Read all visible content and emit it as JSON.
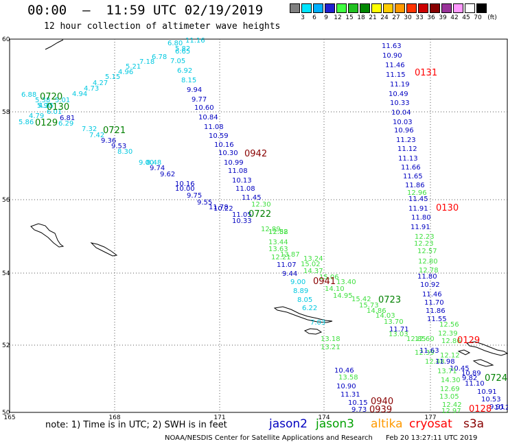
{
  "header": {
    "title": "00:00  –  11:59 UTC 02/19/2019",
    "subtitle": "12 hour collection of altimeter wave heights"
  },
  "legend": {
    "unit": "(ft)",
    "items": [
      {
        "color": "#808080",
        "label": "3"
      },
      {
        "color": "#00e5ff",
        "label": "6"
      },
      {
        "color": "#00b0ff",
        "label": "9"
      },
      {
        "color": "#2020d0",
        "label": "12"
      },
      {
        "color": "#40ff40",
        "label": "15"
      },
      {
        "color": "#20c020",
        "label": "18"
      },
      {
        "color": "#008800",
        "label": "21"
      },
      {
        "color": "#ffff00",
        "label": "24"
      },
      {
        "color": "#ffcc00",
        "label": "27"
      },
      {
        "color": "#ff9900",
        "label": "30"
      },
      {
        "color": "#ff3300",
        "label": "33"
      },
      {
        "color": "#cc0000",
        "label": "36"
      },
      {
        "color": "#880000",
        "label": "39"
      },
      {
        "color": "#993399",
        "label": "42"
      },
      {
        "color": "#ff99ff",
        "label": "45"
      },
      {
        "color": "#ffffff",
        "label": "70"
      },
      {
        "color": "#000000",
        "label": ""
      }
    ]
  },
  "axes": {
    "lat_ticks": [
      "60",
      "58",
      "56",
      "54",
      "52",
      "50"
    ],
    "lon_ticks": [
      "165",
      "168",
      "171",
      "174",
      "177"
    ]
  },
  "tracks": {
    "jason3_west": {
      "color": "#00c8e0",
      "values": [
        "11.16",
        "6.80",
        "5.82",
        "6.65",
        "6.78",
        "7.18",
        "5.21",
        "4.96",
        "5.15",
        "4.27",
        "4.73",
        "4.94",
        "6.88",
        "5.38",
        "5.01",
        "4.25",
        "6.01",
        "5.90",
        "4.79",
        "5.86"
      ]
    },
    "jason2_curve": {
      "color": "#00c8e0",
      "values": [
        "7.05",
        "6.92",
        "8.15"
      ]
    },
    "jason2_mid": {
      "color": "#0000c0",
      "values": [
        "9.94",
        "9.77",
        "10.60",
        "10.84",
        "11.08",
        "10.59",
        "10.16",
        "10.30",
        "10.99",
        "11.08",
        "10.13",
        "11.08",
        "11.45",
        "11.05",
        "10.33",
        "11.07",
        "9.44"
      ]
    },
    "jason2_lower": {
      "color": "#00c8e0",
      "values": [
        "9.00",
        "8.89",
        "8.05",
        "6.22",
        "7.03"
      ]
    },
    "jason2_bottom": {
      "color": "#0000c0",
      "values": [
        "10.46",
        "10.90",
        "11.31",
        "10.15",
        "9.73"
      ]
    },
    "cyan_diag": {
      "color": "#00c8e0",
      "values": [
        "6.29",
        "7.32",
        "7.42",
        "8.30",
        "9.00",
        "8.48"
      ]
    },
    "blue_diag": {
      "color": "#0000c0",
      "values": [
        "6.81",
        "9.36",
        "9.53",
        "9.74",
        "9.62",
        "10.16",
        "10.00",
        "9.75",
        "9.55",
        "10.22",
        "11.78"
      ]
    },
    "altika_green": {
      "color": "#40e040",
      "values": [
        "12.30",
        "12.58",
        "12.82",
        "12.89",
        "13.44",
        "13.63",
        "13.87",
        "12.21",
        "13.24",
        "15.02",
        "14.37",
        "15.06",
        "13.40",
        "14.10",
        "14.95",
        "15.42",
        "15.73",
        "14.86",
        "14.03",
        "13.70",
        "13.03",
        "12.85",
        "12.60",
        "12.39",
        "12.48",
        "13.58",
        "13.18",
        "13.21"
      ]
    },
    "jason2_east": {
      "color": "#0000c0",
      "values": [
        "11.63",
        "10.90",
        "11.46",
        "11.15",
        "11.19",
        "10.49",
        "10.33",
        "10.04",
        "10.03",
        "10.96",
        "11.23",
        "11.12",
        "11.13",
        "11.66",
        "11.65",
        "11.86",
        "11.45",
        "11.91",
        "11.80",
        "11.91",
        "11.80",
        "10.92",
        "11.46",
        "11.70",
        "11.86",
        "11.55",
        "11.71",
        "11.63",
        "11.98",
        "10.45",
        "10.89",
        "9.82",
        "11.10",
        "10.91",
        "10.53",
        "9.91",
        "10.2"
      ]
    },
    "green_east": {
      "color": "#40e040",
      "values": [
        "12.96",
        "12.23",
        "12.23",
        "12.57",
        "12.80",
        "12.78",
        "12.56",
        "12.39",
        "12.86",
        "12.12",
        "13.71",
        "14.30",
        "12.69",
        "13.05",
        "12.42",
        "12.97"
      ]
    }
  },
  "times": [
    {
      "text": "0720",
      "color": "#008000"
    },
    {
      "text": "0130",
      "color": "#008000"
    },
    {
      "text": "0129",
      "color": "#008000"
    },
    {
      "text": "0721",
      "color": "#008000"
    },
    {
      "text": "0942",
      "color": "#880000"
    },
    {
      "text": "0722",
      "color": "#008000"
    },
    {
      "text": "0941",
      "color": "#880000"
    },
    {
      "text": "0723",
      "color": "#008000"
    },
    {
      "text": "0940",
      "color": "#880000"
    },
    {
      "text": "0939",
      "color": "#880000"
    },
    {
      "text": "0131",
      "color": "#ff0000"
    },
    {
      "text": "0130",
      "color": "#ff0000"
    },
    {
      "text": "0129",
      "color": "#ff0000"
    },
    {
      "text": "0724",
      "color": "#008000"
    },
    {
      "text": "0128",
      "color": "#ff0000"
    }
  ],
  "footer": {
    "note": "note: 1) Time is in UTC; 2) SWH is in feet",
    "sats": [
      {
        "name": "jason2",
        "color": "#0000c0"
      },
      {
        "name": "jason3",
        "color": "#00a000"
      },
      {
        "name": "altika",
        "color": "#ff9900"
      },
      {
        "name": "cryosat",
        "color": "#ff0000"
      },
      {
        "name": "s3a",
        "color": "#880000"
      }
    ],
    "credit": "NOAA/NESDIS Center for Satellite Applications and Research",
    "timestamp": "Feb 20 13:27:11 UTC 2019"
  }
}
